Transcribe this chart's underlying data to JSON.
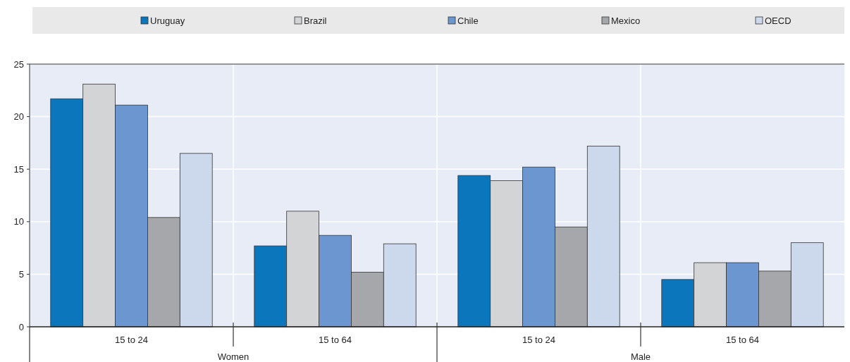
{
  "chart_data": {
    "type": "bar",
    "categories": [
      "15 to 24",
      "15 to 64",
      "15 to 24",
      "15 to 64"
    ],
    "series": [
      {
        "name": "Uruguay",
        "color": "#0b76bc",
        "values": [
          21.7,
          7.7,
          14.4,
          4.5
        ]
      },
      {
        "name": "Brazil",
        "color": "#d3d4d6",
        "values": [
          23.1,
          11.0,
          13.9,
          6.1
        ]
      },
      {
        "name": "Chile",
        "color": "#6c96cf",
        "values": [
          21.1,
          8.7,
          15.2,
          6.1
        ]
      },
      {
        "name": "Mexico",
        "color": "#a6a7aa",
        "values": [
          10.4,
          5.2,
          9.5,
          5.3
        ]
      },
      {
        "name": "OECD",
        "color": "#ccd8ec",
        "values": [
          16.5,
          7.9,
          17.2,
          8.0
        ]
      }
    ],
    "ylim": [
      0,
      25
    ],
    "yticks": [
      0,
      5,
      10,
      15,
      20,
      25
    ],
    "annotations": [
      "Women",
      "Male"
    ],
    "grid": true,
    "legend": "top"
  }
}
